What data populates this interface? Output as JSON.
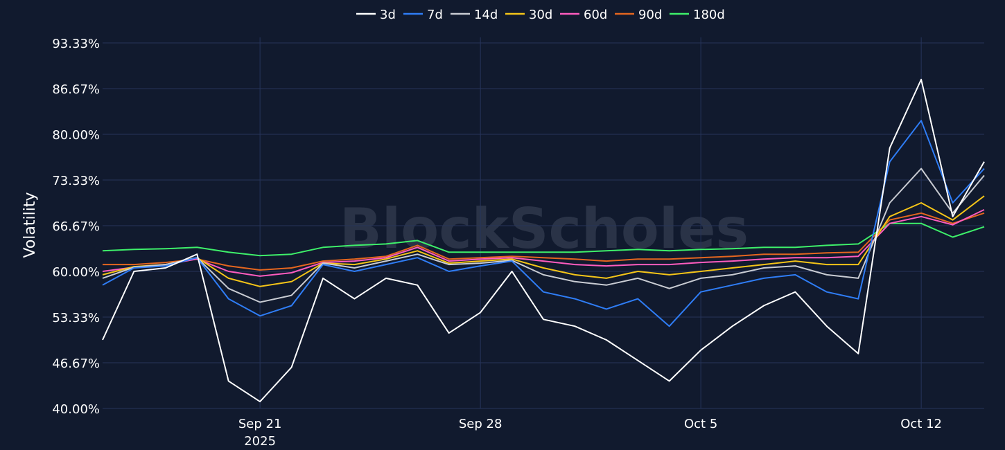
{
  "watermark": "BlockScholes",
  "colors": {
    "background": "#111a2e",
    "grid": "#26345a",
    "3d": "#ffffff",
    "7d": "#2f7df6",
    "14d": "#c9ccd3",
    "30d": "#f5c518",
    "60d": "#ff5cbf",
    "90d": "#e5661f",
    "180d": "#3ef06a"
  },
  "chart_data": {
    "type": "line",
    "title": "",
    "xlabel": "",
    "ylabel": "Volatility",
    "ylim": [
      40.0,
      93.33
    ],
    "yticks": [
      "40.00%",
      "46.67%",
      "53.33%",
      "60.00%",
      "66.67%",
      "73.33%",
      "80.00%",
      "86.67%",
      "93.33%"
    ],
    "ytick_values": [
      40.0,
      46.67,
      53.33,
      60.0,
      66.67,
      73.33,
      80.0,
      86.67,
      93.33
    ],
    "xlim": [
      "2025-09-16",
      "2025-10-14"
    ],
    "xticks": [
      {
        "date": "2025-09-21",
        "label": "Sep 21",
        "sublabel": "2025"
      },
      {
        "date": "2025-09-28",
        "label": "Sep 28",
        "sublabel": ""
      },
      {
        "date": "2025-10-05",
        "label": "Oct 5",
        "sublabel": ""
      },
      {
        "date": "2025-10-12",
        "label": "Oct 12",
        "sublabel": ""
      }
    ],
    "grid": true,
    "legend_position": "top-center",
    "x": [
      "2025-09-16",
      "2025-09-17",
      "2025-09-18",
      "2025-09-19",
      "2025-09-20",
      "2025-09-21",
      "2025-09-22",
      "2025-09-23",
      "2025-09-24",
      "2025-09-25",
      "2025-09-26",
      "2025-09-27",
      "2025-09-28",
      "2025-09-29",
      "2025-09-30",
      "2025-10-01",
      "2025-10-02",
      "2025-10-03",
      "2025-10-04",
      "2025-10-05",
      "2025-10-06",
      "2025-10-07",
      "2025-10-08",
      "2025-10-09",
      "2025-10-10",
      "2025-10-11",
      "2025-10-12",
      "2025-10-13",
      "2025-10-14"
    ],
    "series": [
      {
        "name": "3d",
        "values": [
          50.0,
          60.0,
          60.5,
          62.5,
          44.0,
          41.0,
          46.0,
          59.0,
          56.0,
          59.0,
          58.0,
          51.0,
          54.0,
          60.0,
          53.0,
          52.0,
          50.0,
          47.0,
          44.0,
          48.5,
          52.0,
          55.0,
          57.0,
          52.0,
          48.0,
          78.0,
          88.0,
          68.0,
          76.0
        ]
      },
      {
        "name": "7d",
        "values": [
          58.0,
          60.5,
          60.8,
          62.0,
          56.0,
          53.5,
          55.0,
          61.0,
          60.0,
          61.0,
          62.0,
          60.0,
          60.8,
          61.5,
          57.0,
          56.0,
          54.5,
          56.0,
          52.0,
          57.0,
          58.0,
          59.0,
          59.5,
          57.0,
          56.0,
          76.0,
          82.0,
          70.0,
          75.0
        ]
      },
      {
        "name": "14d",
        "values": [
          59.0,
          60.6,
          61.0,
          62.0,
          57.5,
          55.5,
          56.5,
          61.2,
          60.5,
          61.5,
          62.5,
          61.0,
          61.2,
          61.6,
          59.5,
          58.5,
          58.0,
          59.0,
          57.5,
          59.0,
          59.5,
          60.5,
          60.8,
          59.5,
          59.0,
          70.0,
          75.0,
          68.5,
          74.0
        ]
      },
      {
        "name": "30d",
        "values": [
          59.5,
          60.7,
          61.0,
          62.0,
          59.0,
          57.8,
          58.5,
          61.2,
          61.0,
          61.8,
          63.0,
          61.2,
          61.5,
          61.8,
          60.5,
          59.5,
          59.0,
          60.0,
          59.5,
          60.0,
          60.5,
          61.0,
          61.5,
          61.0,
          61.0,
          68.0,
          70.0,
          67.5,
          71.0
        ]
      },
      {
        "name": "60d",
        "values": [
          60.0,
          60.6,
          61.0,
          61.8,
          60.0,
          59.3,
          59.8,
          61.3,
          61.5,
          62.0,
          63.5,
          61.5,
          61.8,
          62.0,
          61.5,
          61.0,
          60.8,
          61.0,
          61.0,
          61.3,
          61.5,
          61.8,
          62.0,
          62.0,
          62.2,
          67.0,
          68.0,
          66.8,
          69.0
        ]
      },
      {
        "name": "90d",
        "values": [
          61.0,
          61.0,
          61.3,
          61.8,
          60.8,
          60.2,
          60.5,
          61.5,
          61.8,
          62.2,
          63.8,
          61.8,
          62.0,
          62.2,
          62.0,
          61.8,
          61.5,
          61.8,
          61.8,
          62.0,
          62.2,
          62.5,
          62.5,
          62.7,
          62.8,
          67.5,
          68.5,
          67.0,
          68.5
        ]
      },
      {
        "name": "180d",
        "values": [
          63.0,
          63.2,
          63.3,
          63.5,
          62.8,
          62.3,
          62.5,
          63.5,
          63.8,
          64.0,
          64.5,
          62.8,
          62.8,
          62.8,
          62.8,
          62.8,
          63.0,
          63.2,
          63.0,
          63.2,
          63.3,
          63.5,
          63.5,
          63.8,
          64.0,
          67.0,
          67.0,
          65.0,
          66.5
        ]
      }
    ]
  }
}
